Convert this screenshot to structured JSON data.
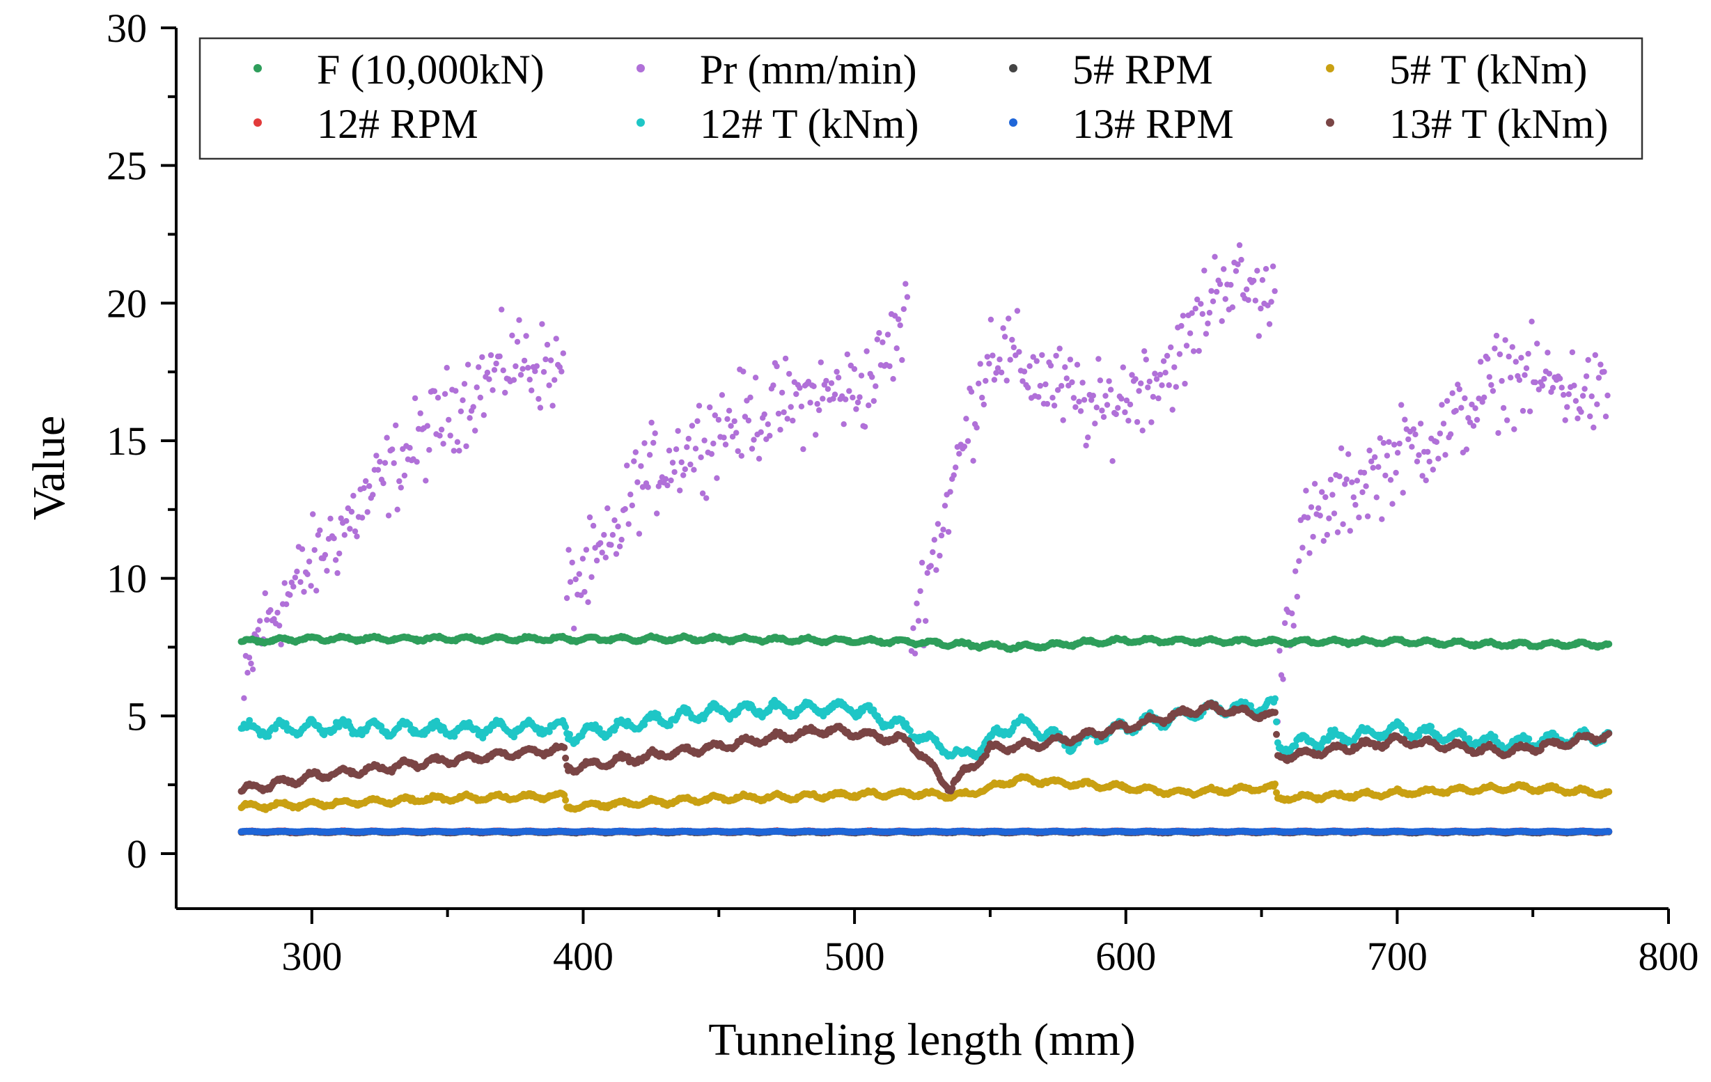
{
  "chart_data": {
    "type": "scatter",
    "title": "",
    "xlabel": "Tunneling length (mm)",
    "ylabel": "Value",
    "xlim": [
      250,
      800
    ],
    "ylim": [
      -2,
      30
    ],
    "xticks": [
      300,
      400,
      500,
      600,
      700,
      800
    ],
    "yticks": [
      0,
      5,
      10,
      15,
      20,
      25,
      30
    ],
    "grid": false,
    "legend_position": "top",
    "series": [
      {
        "name": "F (10,000kN)",
        "color": "#2e9e5b",
        "jitter": 0.12,
        "profile": [
          [
            274,
            7.7
          ],
          [
            300,
            7.8
          ],
          [
            350,
            7.8
          ],
          [
            393,
            7.8
          ],
          [
            450,
            7.8
          ],
          [
            520,
            7.7
          ],
          [
            560,
            7.5
          ],
          [
            600,
            7.75
          ],
          [
            655,
            7.7
          ],
          [
            700,
            7.7
          ],
          [
            740,
            7.6
          ],
          [
            778,
            7.6
          ]
        ]
      },
      {
        "name": "Pr (mm/min)",
        "color": "#b070d8",
        "jitter": 2.4,
        "segments": [
          [
            [
              275,
              5.5
            ],
            [
              280,
              8
            ],
            [
              300,
              10.5
            ],
            [
              330,
              14
            ],
            [
              355,
              16.5
            ],
            [
              375,
              18
            ],
            [
              393,
              17.5
            ]
          ],
          [
            [
              394,
              9.5
            ],
            [
              410,
              11
            ],
            [
              420,
              13.5
            ],
            [
              450,
              15.5
            ],
            [
              480,
              16.5
            ],
            [
              505,
              17
            ],
            [
              520,
              19.5
            ]
          ],
          [
            [
              521,
              8
            ],
            [
              535,
              13
            ],
            [
              550,
              18.5
            ],
            [
              565,
              17.5
            ],
            [
              590,
              16
            ],
            [
              620,
              18
            ],
            [
              635,
              21
            ],
            [
              655,
              20
            ]
          ],
          [
            [
              656,
              6.5
            ],
            [
              665,
              11.5
            ],
            [
              680,
              13
            ],
            [
              700,
              14.5
            ],
            [
              720,
              15.5
            ],
            [
              740,
              17.5
            ],
            [
              760,
              17
            ],
            [
              778,
              16.5
            ]
          ]
        ]
      },
      {
        "name": "5# RPM",
        "color": "#444444",
        "jitter": 0.04,
        "profile": [
          [
            274,
            0.78
          ],
          [
            778,
            0.78
          ]
        ]
      },
      {
        "name": "5# T (kNm)",
        "color": "#c9a012",
        "jitter": 0.15,
        "profile": [
          [
            274,
            1.7
          ],
          [
            300,
            1.8
          ],
          [
            350,
            2.0
          ],
          [
            393,
            2.1
          ],
          [
            394,
            1.7
          ],
          [
            450,
            2.0
          ],
          [
            520,
            2.2
          ],
          [
            540,
            2.1
          ],
          [
            560,
            2.7
          ],
          [
            600,
            2.4
          ],
          [
            620,
            2.2
          ],
          [
            655,
            2.4
          ],
          [
            656,
            2.0
          ],
          [
            700,
            2.2
          ],
          [
            745,
            2.4
          ],
          [
            778,
            2.2
          ]
        ]
      },
      {
        "name": "12# RPM",
        "color": "#e23b3b",
        "jitter": 0.03,
        "profile": [
          [
            274,
            0.8
          ],
          [
            778,
            0.8
          ]
        ]
      },
      {
        "name": "12# T (kNm)",
        "color": "#1ec6c6",
        "jitter": 0.35,
        "profile": [
          [
            274,
            4.5
          ],
          [
            300,
            4.6
          ],
          [
            350,
            4.5
          ],
          [
            393,
            4.6
          ],
          [
            394,
            4.3
          ],
          [
            450,
            5.2
          ],
          [
            500,
            5.3
          ],
          [
            520,
            4.5
          ],
          [
            540,
            3.5
          ],
          [
            560,
            4.8
          ],
          [
            580,
            4.0
          ],
          [
            600,
            4.6
          ],
          [
            630,
            5.2
          ],
          [
            655,
            5.4
          ],
          [
            656,
            3.9
          ],
          [
            700,
            4.5
          ],
          [
            740,
            4.0
          ],
          [
            778,
            4.3
          ]
        ]
      },
      {
        "name": "13# RPM",
        "color": "#1f66d8",
        "jitter": 0.02,
        "profile": [
          [
            274,
            0.8
          ],
          [
            778,
            0.8
          ]
        ]
      },
      {
        "name": "13# T (kNm)",
        "color": "#7a4545",
        "jitter": 0.22,
        "profile": [
          [
            274,
            2.3
          ],
          [
            300,
            2.8
          ],
          [
            350,
            3.4
          ],
          [
            393,
            3.8
          ],
          [
            394,
            3.1
          ],
          [
            450,
            3.9
          ],
          [
            490,
            4.5
          ],
          [
            520,
            4.1
          ],
          [
            535,
            2.4
          ],
          [
            550,
            3.8
          ],
          [
            570,
            4.0
          ],
          [
            600,
            4.6
          ],
          [
            630,
            5.3
          ],
          [
            655,
            5.0
          ],
          [
            656,
            3.5
          ],
          [
            700,
            4.1
          ],
          [
            740,
            3.7
          ],
          [
            778,
            4.3
          ]
        ]
      }
    ],
    "legend_order": [
      0,
      1,
      2,
      3,
      4,
      5,
      6,
      7
    ]
  }
}
